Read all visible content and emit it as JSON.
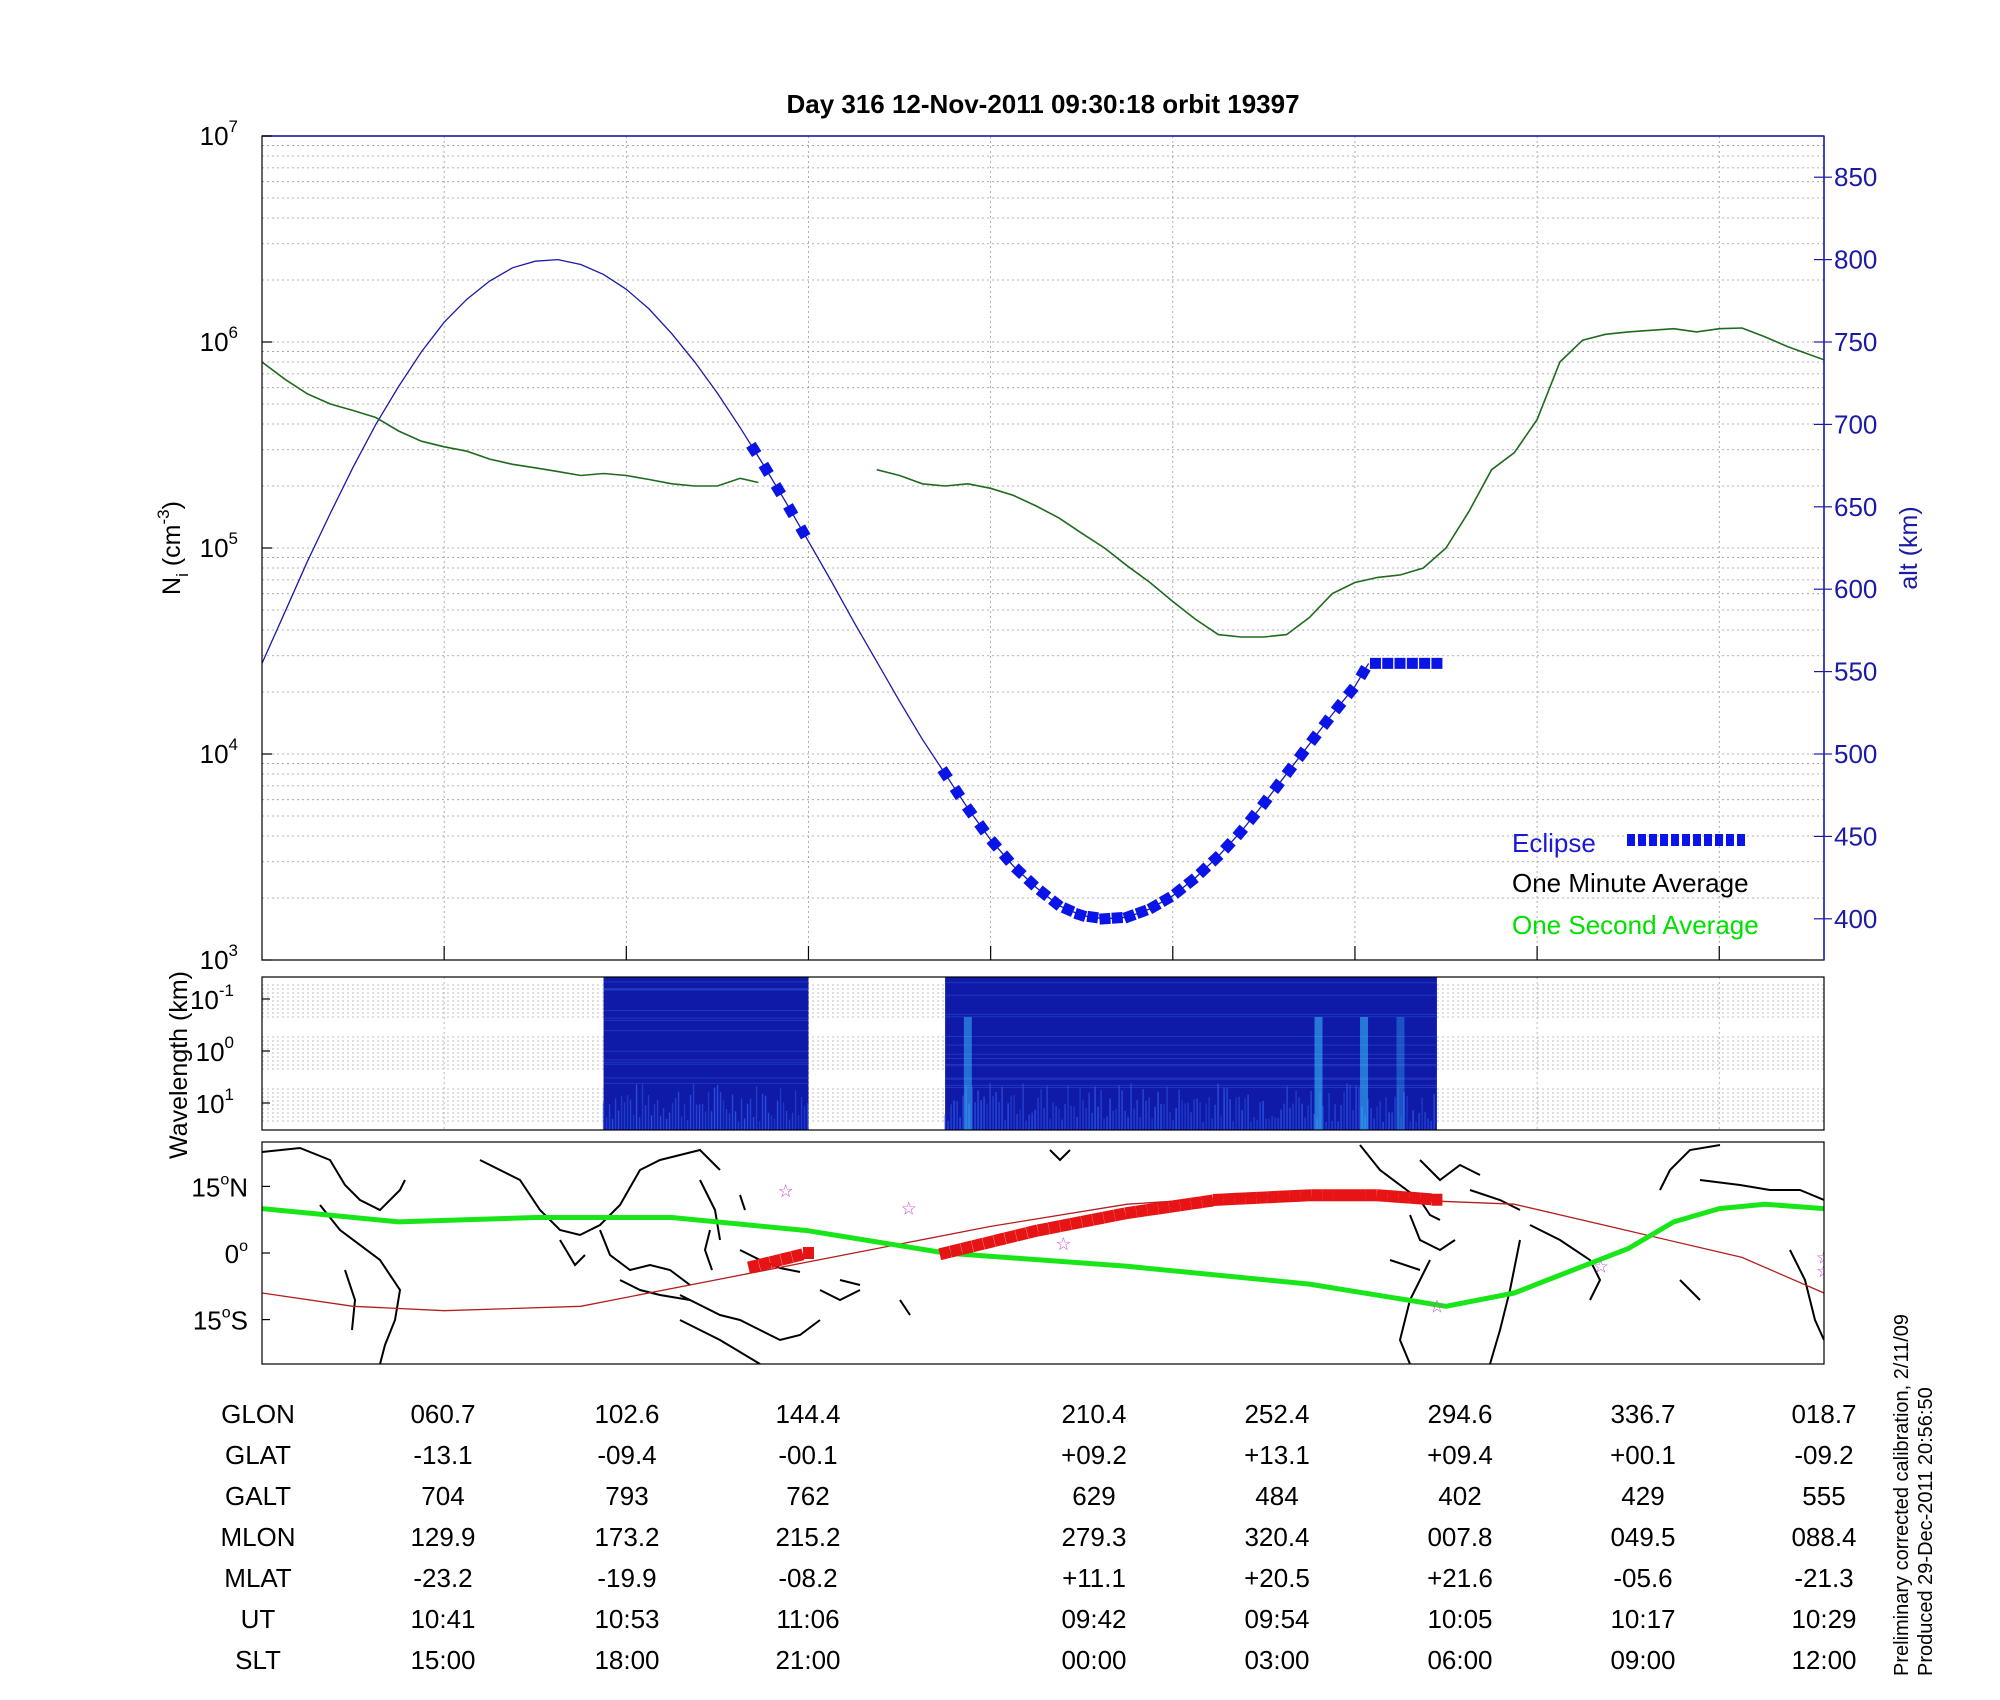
{
  "title": "Day 316  12-Nov-2011 09:30:18   orbit 19397",
  "chart_data": [
    {
      "panel": "density",
      "type": "line",
      "ylabel": "N",
      "ylabel_sub": "i",
      "ylabel_unit_pre": " (cm",
      "ylabel_unit_exp": "-3",
      "ylabel_unit_post": ")",
      "yscale": "log",
      "ylim": [
        1000,
        10000000
      ],
      "y_ticks": [
        {
          "base": "10",
          "exp": "3"
        },
        {
          "base": "10",
          "exp": "4"
        },
        {
          "base": "10",
          "exp": "5"
        },
        {
          "base": "10",
          "exp": "6"
        },
        {
          "base": "10",
          "exp": "7"
        }
      ],
      "y2label": "alt (km)",
      "y2lim": [
        375,
        875
      ],
      "y2_ticks": [
        "400",
        "450",
        "500",
        "550",
        "600",
        "650",
        "700",
        "750",
        "800",
        "850"
      ],
      "grid": true,
      "legend_placement": "bottom-right",
      "colors": {
        "density": "#1e6b1e",
        "altitude": "#1a1aa6",
        "eclipse": "#0a14e6",
        "right_axis": "#1a1aa6"
      },
      "legend": [
        {
          "label": "Eclipse",
          "color": "#1a1ad6"
        },
        {
          "label": "One Minute Average",
          "color": "#000000"
        },
        {
          "label": "One Second Average",
          "color": "#00e000"
        }
      ],
      "density_segments": [
        [
          [
            0,
            800000
          ],
          [
            0.5,
            660000
          ],
          [
            1,
            560000
          ],
          [
            1.5,
            500000
          ],
          [
            2,
            465000
          ],
          [
            2.5,
            430000
          ],
          [
            3,
            370000
          ],
          [
            3.5,
            330000
          ],
          [
            4,
            310000
          ],
          [
            4.5,
            295000
          ],
          [
            5,
            270000
          ],
          [
            5.5,
            255000
          ],
          [
            6,
            245000
          ],
          [
            6.5,
            235000
          ],
          [
            7,
            225000
          ],
          [
            7.5,
            230000
          ],
          [
            8,
            225000
          ],
          [
            8.5,
            215000
          ],
          [
            9,
            205000
          ],
          [
            9.5,
            200000
          ],
          [
            10,
            200000
          ],
          [
            10.5,
            218000
          ],
          [
            10.9,
            208000
          ]
        ],
        [
          [
            13.5,
            240000
          ],
          [
            14,
            225000
          ],
          [
            14.5,
            205000
          ],
          [
            15,
            200000
          ],
          [
            15.5,
            205000
          ],
          [
            16,
            195000
          ],
          [
            16.5,
            180000
          ],
          [
            17,
            160000
          ],
          [
            17.5,
            140000
          ],
          [
            18,
            118000
          ],
          [
            18.5,
            100000
          ],
          [
            19,
            82000
          ],
          [
            19.5,
            68000
          ],
          [
            20,
            55000
          ],
          [
            20.5,
            45000
          ],
          [
            21,
            38000
          ],
          [
            21.5,
            37000
          ],
          [
            22,
            37000
          ],
          [
            22.5,
            38000
          ],
          [
            23,
            46000
          ],
          [
            23.5,
            60000
          ],
          [
            24,
            68000
          ],
          [
            24.5,
            72000
          ],
          [
            25,
            74000
          ],
          [
            25.5,
            80000
          ],
          [
            26,
            100000
          ],
          [
            26.5,
            150000
          ],
          [
            27,
            240000
          ],
          [
            27.5,
            290000
          ],
          [
            28,
            420000
          ],
          [
            28.5,
            800000
          ],
          [
            29,
            1020000
          ],
          [
            29.5,
            1090000
          ],
          [
            30,
            1120000
          ],
          [
            30.5,
            1140000
          ],
          [
            31,
            1160000
          ],
          [
            31.5,
            1120000
          ],
          [
            32,
            1160000
          ],
          [
            32.5,
            1170000
          ],
          [
            33,
            1060000
          ],
          [
            33.5,
            950000
          ],
          [
            34.3,
            820000
          ]
        ]
      ],
      "altitude_km": [
        [
          0,
          555
        ],
        [
          0.5,
          586
        ],
        [
          1,
          617
        ],
        [
          1.5,
          646
        ],
        [
          2,
          674
        ],
        [
          2.5,
          700
        ],
        [
          3,
          723
        ],
        [
          3.5,
          744
        ],
        [
          4,
          762
        ],
        [
          4.5,
          776
        ],
        [
          5,
          787
        ],
        [
          5.5,
          795
        ],
        [
          6,
          799
        ],
        [
          6.5,
          800
        ],
        [
          7,
          797
        ],
        [
          7.5,
          791
        ],
        [
          8,
          782
        ],
        [
          8.5,
          770
        ],
        [
          9,
          755
        ],
        [
          9.5,
          738
        ],
        [
          10,
          719
        ],
        [
          10.5,
          698
        ],
        [
          11,
          676
        ],
        [
          11.5,
          653
        ],
        [
          12,
          629
        ],
        [
          12.5,
          605
        ],
        [
          13,
          580
        ],
        [
          13.5,
          556
        ],
        [
          14,
          532
        ],
        [
          14.5,
          509
        ],
        [
          15,
          488
        ],
        [
          15.5,
          467
        ],
        [
          16,
          448
        ],
        [
          16.5,
          432
        ],
        [
          17,
          419
        ],
        [
          17.5,
          408
        ],
        [
          18,
          402
        ],
        [
          18.5,
          400
        ],
        [
          19,
          401
        ],
        [
          19.5,
          406
        ],
        [
          20,
          414
        ],
        [
          20.5,
          425
        ],
        [
          21,
          438
        ],
        [
          21.5,
          453
        ],
        [
          22,
          470
        ],
        [
          22.5,
          488
        ],
        [
          23,
          506
        ],
        [
          23.5,
          524
        ],
        [
          24,
          541
        ],
        [
          24.3,
          555
        ]
      ],
      "eclipse_segments": [
        [
          10.8,
          12.0
        ],
        [
          15.0,
          25.8
        ]
      ]
    },
    {
      "panel": "spectrogram",
      "type": "heatmap",
      "ylabel": "Wavelength (km)",
      "y_ticks": [
        {
          "base": "10",
          "exp": "-1"
        },
        {
          "base": "10",
          "exp": "0"
        },
        {
          "base": "10",
          "exp": "1"
        }
      ],
      "colors": {
        "background": "#0f1aa8",
        "bright": "#38c6ff"
      },
      "data_segments": [
        [
          7.5,
          12.0
        ],
        [
          15.0,
          25.8
        ]
      ]
    },
    {
      "panel": "map",
      "type": "line",
      "y_ticks": [
        {
          "deg": "15",
          "hemi": "N"
        },
        {
          "deg": "0",
          "hemi": ""
        },
        {
          "deg": "15",
          "hemi": "S"
        }
      ],
      "ylim": [
        -25,
        25
      ],
      "colors": {
        "track": "#19e619",
        "eclipse_track": "#e61414",
        "magnetic_equator": "#b41e1e",
        "stars": "#c850c8"
      },
      "track": [
        [
          0,
          10
        ],
        [
          1,
          9
        ],
        [
          3,
          7
        ],
        [
          6,
          8
        ],
        [
          9,
          8
        ],
        [
          12,
          5
        ],
        [
          15,
          0
        ],
        [
          19,
          -3
        ],
        [
          23,
          -7
        ],
        [
          26,
          -12
        ],
        [
          27.5,
          -9
        ],
        [
          29,
          -3
        ],
        [
          30,
          1
        ],
        [
          31,
          7
        ],
        [
          32,
          10
        ],
        [
          33,
          11
        ],
        [
          34.3,
          10
        ]
      ],
      "eclipse_track": [
        [
          10.8,
          -3
        ],
        [
          12.0,
          0
        ],
        [
          15.0,
          0
        ],
        [
          17.0,
          5
        ],
        [
          19.0,
          9
        ],
        [
          21.0,
          12
        ],
        [
          23.0,
          13
        ],
        [
          24.5,
          13
        ],
        [
          25.8,
          12
        ]
      ],
      "magnetic_equator": [
        [
          0,
          -9
        ],
        [
          2,
          -12
        ],
        [
          4,
          -13
        ],
        [
          7,
          -12
        ],
        [
          10,
          -6
        ],
        [
          13,
          0
        ],
        [
          16,
          6
        ],
        [
          19,
          11
        ],
        [
          22,
          13
        ],
        [
          25,
          12
        ],
        [
          27.5,
          11
        ],
        [
          30,
          5
        ],
        [
          32.5,
          -1
        ],
        [
          34.3,
          -9
        ]
      ],
      "stars": [
        [
          11.5,
          14
        ],
        [
          14.2,
          10
        ],
        [
          17.6,
          2
        ],
        [
          25.8,
          -12
        ],
        [
          29.4,
          -3
        ],
        [
          34.3,
          -1
        ],
        [
          34.3,
          -4
        ]
      ]
    },
    {
      "panel": "ephemeris",
      "type": "table",
      "row_labels": [
        "GLON",
        "GLAT",
        "GALT",
        "MLON",
        "MLAT",
        "UT",
        "SLT"
      ],
      "columns": [
        [
          "060.7",
          "-13.1",
          "704",
          "129.9",
          "-23.2",
          "10:41",
          "15:00"
        ],
        [
          "102.6",
          "-09.4",
          "793",
          "173.2",
          "-19.9",
          "10:53",
          "18:00"
        ],
        [
          "144.4",
          "-00.1",
          "762",
          "215.2",
          "-08.2",
          "11:06",
          "21:00"
        ],
        [
          "210.4",
          "+09.2",
          "629",
          "279.3",
          "+11.1",
          "09:42",
          "00:00"
        ],
        [
          "252.4",
          "+13.1",
          "484",
          "320.4",
          "+20.5",
          "09:54",
          "03:00"
        ],
        [
          "294.6",
          "+09.4",
          "402",
          "007.8",
          "+21.6",
          "10:05",
          "06:00"
        ],
        [
          "336.7",
          "+00.1",
          "429",
          "049.5",
          "-05.6",
          "10:17",
          "09:00"
        ],
        [
          "018.7",
          "-09.2",
          "555",
          "088.4",
          "-21.3",
          "10:29",
          "12:00"
        ]
      ]
    }
  ],
  "footnote": {
    "line1": "Preliminary corrected calibration, 2/11/09",
    "line2": "Produced 29-Dec-2011 20:56:50"
  }
}
